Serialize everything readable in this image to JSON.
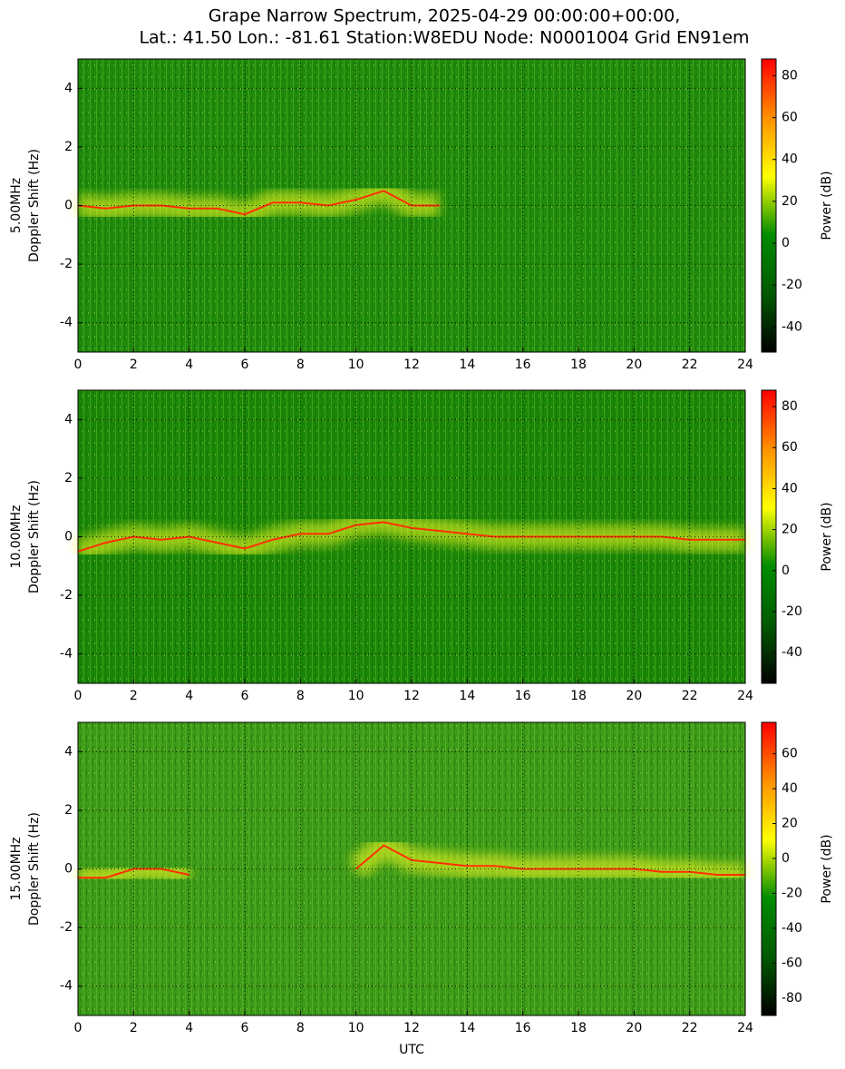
{
  "figure": {
    "title": [
      "Grape Narrow Spectrum, 2025-04-29 00:00:00+00:00,",
      "Lat.: 41.50 Lon.: -81.61 Station:W8EDU Node: N0001004 Grid EN91em"
    ]
  },
  "chart_data": [
    {
      "type": "spectrogram",
      "ylabel": [
        "5.00MHz",
        "Doppler Shift (Hz)"
      ],
      "xlim": [
        0,
        24
      ],
      "xticks": [
        0,
        2,
        4,
        6,
        8,
        10,
        12,
        14,
        16,
        18,
        20,
        22,
        24
      ],
      "ylim": [
        -5,
        5
      ],
      "yticks": [
        -4,
        -2,
        0,
        2,
        4
      ],
      "grid": true,
      "background": "#1f8a0c",
      "trace_color": "#ff3000",
      "trace": {
        "x": [
          0,
          1,
          2,
          3,
          4,
          5,
          6,
          7,
          8,
          9,
          10,
          11,
          12,
          13
        ],
        "values": [
          0,
          -0.1,
          0,
          0,
          -0.1,
          -0.1,
          -0.3,
          0.1,
          0.1,
          0,
          0.2,
          0.5,
          0,
          0
        ]
      },
      "colorbar": {
        "label": "Power (dB)",
        "lim": [
          -52,
          88
        ],
        "ticks": [
          -40,
          -20,
          0,
          20,
          40,
          60,
          80
        ],
        "colormap": [
          "#000000",
          "#005a00",
          "#008c00",
          "#ffff00",
          "#ff9000",
          "#ff0000"
        ]
      }
    },
    {
      "type": "spectrogram",
      "ylabel": [
        "10.00MHz",
        "Doppler Shift (Hz)"
      ],
      "xlim": [
        0,
        24
      ],
      "xticks": [
        0,
        2,
        4,
        6,
        8,
        10,
        12,
        14,
        16,
        18,
        20,
        22,
        24
      ],
      "ylim": [
        -5,
        5
      ],
      "yticks": [
        -4,
        -2,
        0,
        2,
        4
      ],
      "grid": true,
      "background": "#1a8608",
      "trace_color": "#ff3000",
      "trace": {
        "x": [
          0,
          1,
          2,
          3,
          4,
          5,
          6,
          7,
          8,
          9,
          10,
          11,
          12,
          13,
          14,
          15,
          16,
          17,
          18,
          19,
          20,
          21,
          22,
          23,
          24
        ],
        "values": [
          -0.5,
          -0.2,
          0,
          -0.1,
          0,
          -0.2,
          -0.4,
          -0.1,
          0.1,
          0.1,
          0.4,
          0.5,
          0.3,
          0.2,
          0.1,
          0,
          0,
          0,
          0,
          0,
          0,
          0,
          -0.1,
          -0.1,
          -0.1
        ]
      },
      "colorbar": {
        "label": "Power (dB)",
        "lim": [
          -55,
          88
        ],
        "ticks": [
          -40,
          -20,
          0,
          20,
          40,
          60,
          80
        ],
        "colormap": [
          "#000000",
          "#005a00",
          "#008c00",
          "#ffff00",
          "#ff9000",
          "#ff0000"
        ]
      }
    },
    {
      "type": "spectrogram",
      "ylabel": [
        "15.00MHz",
        "Doppler Shift (Hz)"
      ],
      "xlabel": "UTC",
      "xlim": [
        0,
        24
      ],
      "xticks": [
        0,
        2,
        4,
        6,
        8,
        10,
        12,
        14,
        16,
        18,
        20,
        22,
        24
      ],
      "ylim": [
        -5,
        5
      ],
      "yticks": [
        -4,
        -2,
        0,
        2,
        4
      ],
      "grid": true,
      "background": "#3c9a18",
      "trace_color": "#ff3000",
      "trace": {
        "x": [
          0,
          1,
          2,
          3,
          4,
          5,
          6,
          7,
          8,
          9,
          10,
          11,
          12,
          13,
          14,
          15,
          16,
          17,
          18,
          19,
          20,
          21,
          22,
          23,
          24
        ],
        "values": [
          -0.3,
          -0.3,
          0,
          0,
          -0.2,
          null,
          null,
          null,
          null,
          null,
          0,
          0.8,
          0.3,
          0.2,
          0.1,
          0.1,
          0,
          0,
          0,
          0,
          0,
          -0.1,
          -0.1,
          -0.2,
          -0.2
        ]
      },
      "colorbar": {
        "label": "Power (dB)",
        "lim": [
          -90,
          78
        ],
        "ticks": [
          -80,
          -60,
          -40,
          -20,
          0,
          20,
          40,
          60
        ],
        "colormap": [
          "#000000",
          "#005a00",
          "#008c00",
          "#ffff00",
          "#ff9000",
          "#ff0000"
        ]
      }
    }
  ]
}
